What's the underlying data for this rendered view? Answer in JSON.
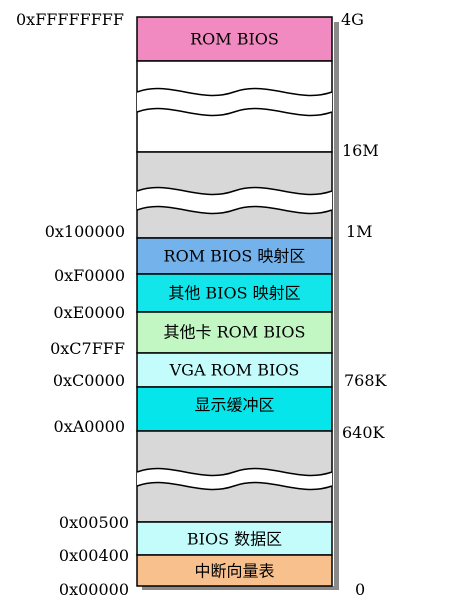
{
  "left_addresses": [
    {
      "id": "ffffffff",
      "text": "0xFFFFFFFF"
    },
    {
      "id": "100000",
      "text": "0x100000"
    },
    {
      "id": "f0000",
      "text": "0xF0000"
    },
    {
      "id": "e0000",
      "text": "0xE0000"
    },
    {
      "id": "c7fff",
      "text": "0xC7FFF"
    },
    {
      "id": "c0000",
      "text": "0xC0000"
    },
    {
      "id": "a0000",
      "text": "0xA0000"
    },
    {
      "id": "00500",
      "text": "0x00500"
    },
    {
      "id": "00400",
      "text": "0x00400"
    },
    {
      "id": "00000",
      "text": "0x00000"
    }
  ],
  "right_sizes": [
    {
      "id": "4g",
      "text": "4G"
    },
    {
      "id": "16m",
      "text": "16M"
    },
    {
      "id": "1m",
      "text": "1M"
    },
    {
      "id": "768k",
      "text": "768K"
    },
    {
      "id": "640k",
      "text": "640K"
    },
    {
      "id": "0",
      "text": "0"
    }
  ],
  "blocks": [
    {
      "id": "rom-bios",
      "label": "ROM BIOS",
      "color": "#f08ac0"
    },
    {
      "id": "rom-bios-shadow",
      "label": "ROM BIOS 映射区",
      "color": "#74b2ec"
    },
    {
      "id": "other-bios-shadow",
      "label": "其他 BIOS 映射区",
      "color": "#13e6ea"
    },
    {
      "id": "other-card-rom-bios",
      "label": "其他卡 ROM BIOS",
      "color": "#c2f6c2"
    },
    {
      "id": "vga-rom-bios",
      "label": "VGA ROM BIOS",
      "color": "#c4fcfc"
    },
    {
      "id": "display-buffer",
      "label": "显示缓冲区",
      "color": "#06e6ea"
    },
    {
      "id": "bios-data-area",
      "label": "BIOS 数据区",
      "color": "#c4fcfc"
    },
    {
      "id": "interrupt-vector-table",
      "label": "中断向量表",
      "color": "#f7c08c"
    }
  ],
  "colors": {
    "gap": "#d8d8d8",
    "white": "#ffffff",
    "shadow": "#8a8a8a",
    "border": "#000000"
  }
}
